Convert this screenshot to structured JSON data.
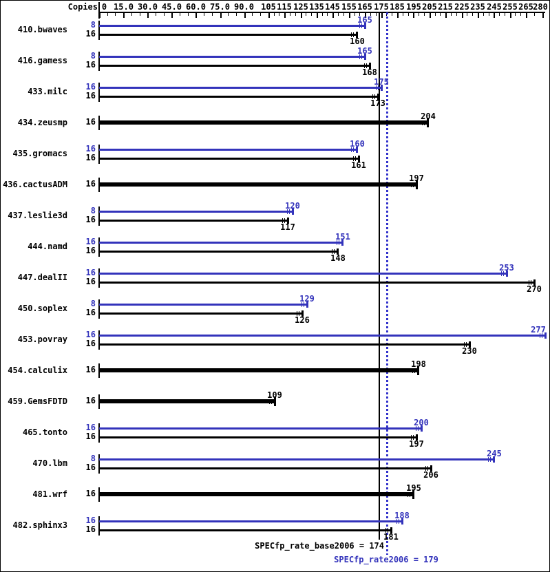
{
  "chart_data": {
    "type": "bar",
    "orientation": "horizontal",
    "copies_header": "Copies",
    "xlim": [
      0,
      280
    ],
    "axis_labels": [
      {
        "v": 0,
        "t": "0"
      },
      {
        "v": 15,
        "t": "15.0"
      },
      {
        "v": 30,
        "t": "30.0"
      },
      {
        "v": 45,
        "t": "45.0"
      },
      {
        "v": 60,
        "t": "60.0"
      },
      {
        "v": 75,
        "t": "75.0"
      },
      {
        "v": 90,
        "t": "90.0"
      },
      {
        "v": 105,
        "t": "105"
      },
      {
        "v": 115,
        "t": "115"
      },
      {
        "v": 125,
        "t": "125"
      },
      {
        "v": 135,
        "t": "135"
      },
      {
        "v": 145,
        "t": "145"
      },
      {
        "v": 155,
        "t": "155"
      },
      {
        "v": 165,
        "t": "165"
      },
      {
        "v": 175,
        "t": "175"
      },
      {
        "v": 185,
        "t": "185"
      },
      {
        "v": 195,
        "t": "195"
      },
      {
        "v": 205,
        "t": "205"
      },
      {
        "v": 215,
        "t": "215"
      },
      {
        "v": 225,
        "t": "225"
      },
      {
        "v": 235,
        "t": "235"
      },
      {
        "v": 245,
        "t": "245"
      },
      {
        "v": 255,
        "t": "255"
      },
      {
        "v": 265,
        "t": "265"
      },
      {
        "v": 280,
        "t": "280"
      }
    ],
    "benchmarks": [
      {
        "name": "410.bwaves",
        "peak": {
          "copies": "8",
          "value": 165
        },
        "base": {
          "copies": "16",
          "value": 160
        }
      },
      {
        "name": "416.gamess",
        "peak": {
          "copies": "8",
          "value": 165
        },
        "base": {
          "copies": "16",
          "value": 168
        }
      },
      {
        "name": "433.milc",
        "peak": {
          "copies": "16",
          "value": 175
        },
        "base": {
          "copies": "16",
          "value": 173
        }
      },
      {
        "name": "434.zeusmp",
        "base": {
          "copies": "16",
          "value": 204
        }
      },
      {
        "name": "435.gromacs",
        "peak": {
          "copies": "16",
          "value": 160
        },
        "base": {
          "copies": "16",
          "value": 161
        }
      },
      {
        "name": "436.cactusADM",
        "base": {
          "copies": "16",
          "value": 197
        }
      },
      {
        "name": "437.leslie3d",
        "peak": {
          "copies": "8",
          "value": 120
        },
        "base": {
          "copies": "16",
          "value": 117
        }
      },
      {
        "name": "444.namd",
        "peak": {
          "copies": "16",
          "value": 151
        },
        "base": {
          "copies": "16",
          "value": 148
        }
      },
      {
        "name": "447.dealII",
        "peak": {
          "copies": "16",
          "value": 253
        },
        "base": {
          "copies": "16",
          "value": 270
        }
      },
      {
        "name": "450.soplex",
        "peak": {
          "copies": "8",
          "value": 129
        },
        "base": {
          "copies": "16",
          "value": 126
        }
      },
      {
        "name": "453.povray",
        "peak": {
          "copies": "16",
          "value": 277
        },
        "base": {
          "copies": "16",
          "value": 230
        }
      },
      {
        "name": "454.calculix",
        "base": {
          "copies": "16",
          "value": 198
        }
      },
      {
        "name": "459.GemsFDTD",
        "base": {
          "copies": "16",
          "value": 109
        }
      },
      {
        "name": "465.tonto",
        "peak": {
          "copies": "16",
          "value": 200
        },
        "base": {
          "copies": "16",
          "value": 197
        }
      },
      {
        "name": "470.lbm",
        "peak": {
          "copies": "8",
          "value": 245
        },
        "base": {
          "copies": "16",
          "value": 206
        }
      },
      {
        "name": "481.wrf",
        "base": {
          "copies": "16",
          "value": 195
        }
      },
      {
        "name": "482.sphinx3",
        "peak": {
          "copies": "16",
          "value": 188
        },
        "base": {
          "copies": "16",
          "value": 181
        }
      }
    ],
    "summary": {
      "base_text": "SPECfp_rate_base2006 = 174",
      "base_value": 174,
      "peak_text": "SPECfp_rate2006 = 179",
      "peak_value": 179
    },
    "colors": {
      "peak": "#3333bb",
      "base": "#000000",
      "dotted_line": "#3333cc",
      "background": "#ffffff"
    }
  }
}
